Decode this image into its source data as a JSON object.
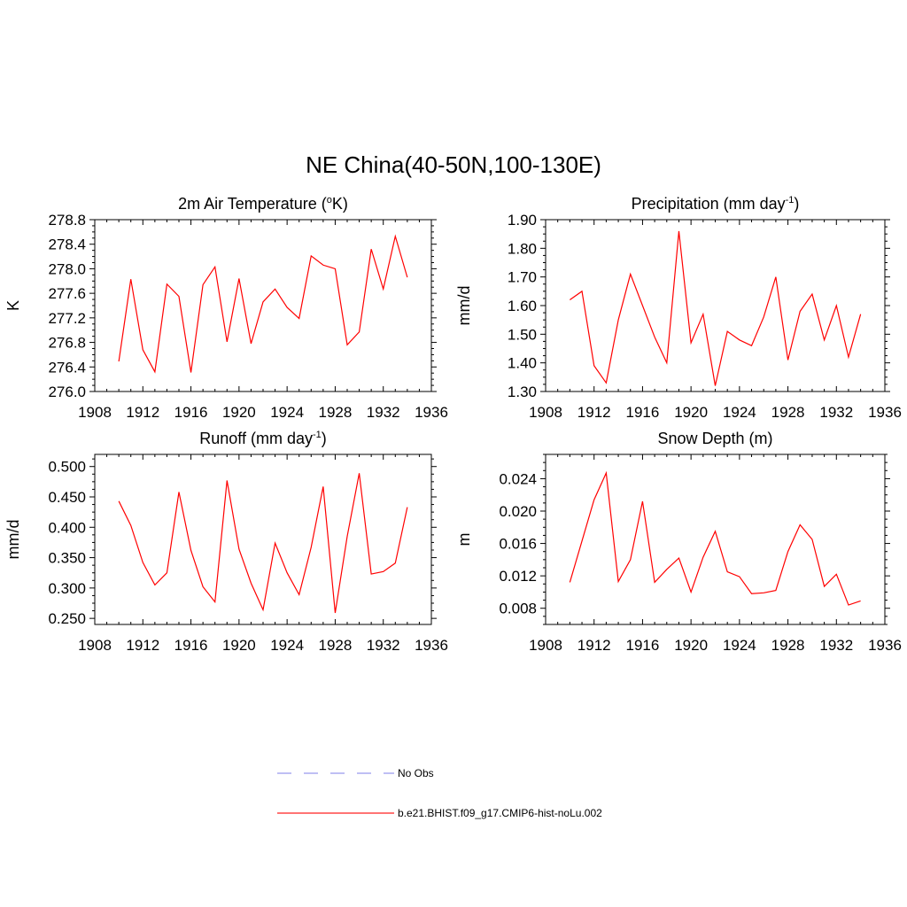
{
  "figure": {
    "title": "NE China(40-50N,100-130E)"
  },
  "legend": {
    "entries": [
      {
        "label": "No Obs",
        "color": "#9999ee",
        "style": "dashed"
      },
      {
        "label": "b.e21.BHIST.f09_g17.CMIP6-hist-noLu.002",
        "color": "#ff2222",
        "style": "solid"
      }
    ]
  },
  "chart_data": [
    {
      "type": "line",
      "title": "2m Air Temperature (",
      "title_sup": "o",
      "title_after": "K)",
      "ylabel": "K",
      "xlim": [
        1908,
        1936
      ],
      "xticks": [
        "1908",
        "1912",
        "1916",
        "1920",
        "1924",
        "1928",
        "1932",
        "1936"
      ],
      "ylim": [
        276.0,
        278.8
      ],
      "yticks": [
        "276.0",
        "276.4",
        "276.8",
        "277.2",
        "277.6",
        "278.0",
        "278.4",
        "278.8"
      ],
      "color": "#ff0000",
      "x": [
        1910,
        1911,
        1912,
        1913,
        1914,
        1915,
        1916,
        1917,
        1918,
        1919,
        1920,
        1921,
        1922,
        1923,
        1924,
        1925,
        1926,
        1927,
        1928,
        1929,
        1930,
        1931,
        1932,
        1933,
        1934
      ],
      "values": [
        276.49,
        277.83,
        276.68,
        276.32,
        277.75,
        277.55,
        276.31,
        277.74,
        278.03,
        276.81,
        277.84,
        276.78,
        277.46,
        277.67,
        277.37,
        277.19,
        278.21,
        278.06,
        278.0,
        276.76,
        276.97,
        278.32,
        277.67,
        278.53,
        277.86
      ]
    },
    {
      "type": "line",
      "title": "Precipitation (mm day",
      "title_sup": "-1",
      "title_after": ")",
      "ylabel": "mm/d",
      "xlim": [
        1908,
        1936
      ],
      "xticks": [
        "1908",
        "1912",
        "1916",
        "1920",
        "1924",
        "1928",
        "1932",
        "1936"
      ],
      "ylim": [
        1.3,
        1.9
      ],
      "yticks": [
        "1.30",
        "1.40",
        "1.50",
        "1.60",
        "1.70",
        "1.80",
        "1.90"
      ],
      "color": "#ff0000",
      "x": [
        1910,
        1911,
        1912,
        1913,
        1914,
        1915,
        1916,
        1917,
        1918,
        1919,
        1920,
        1921,
        1922,
        1923,
        1924,
        1925,
        1926,
        1927,
        1928,
        1929,
        1930,
        1931,
        1932,
        1933,
        1934
      ],
      "values": [
        1.62,
        1.65,
        1.39,
        1.33,
        1.55,
        1.71,
        1.6,
        1.49,
        1.4,
        1.86,
        1.47,
        1.57,
        1.32,
        1.51,
        1.48,
        1.46,
        1.56,
        1.7,
        1.41,
        1.58,
        1.64,
        1.48,
        1.6,
        1.42,
        1.57
      ]
    },
    {
      "type": "line",
      "title": "Runoff (mm day",
      "title_sup": "-1",
      "title_after": ")",
      "ylabel": "mm/d",
      "xlim": [
        1908,
        1936
      ],
      "xticks": [
        "1908",
        "1912",
        "1916",
        "1920",
        "1924",
        "1928",
        "1932",
        "1936"
      ],
      "ylim": [
        0.24,
        0.52
      ],
      "yticks": [
        "0.250",
        "0.300",
        "0.350",
        "0.400",
        "0.450",
        "0.500"
      ],
      "ytick_values": [
        0.25,
        0.3,
        0.35,
        0.4,
        0.45,
        0.5
      ],
      "color": "#ff0000",
      "x": [
        1910,
        1911,
        1912,
        1913,
        1914,
        1915,
        1916,
        1917,
        1918,
        1919,
        1920,
        1921,
        1922,
        1923,
        1924,
        1925,
        1926,
        1927,
        1928,
        1929,
        1930,
        1931,
        1932,
        1933,
        1934
      ],
      "values": [
        0.443,
        0.403,
        0.342,
        0.305,
        0.325,
        0.458,
        0.362,
        0.302,
        0.277,
        0.477,
        0.364,
        0.308,
        0.264,
        0.374,
        0.325,
        0.289,
        0.367,
        0.467,
        0.259,
        0.385,
        0.489,
        0.323,
        0.327,
        0.341,
        0.433
      ]
    },
    {
      "type": "line",
      "title": "Snow Depth (m)",
      "title_sup": "",
      "title_after": "",
      "ylabel": "m",
      "xlim": [
        1908,
        1936
      ],
      "xticks": [
        "1908",
        "1912",
        "1916",
        "1920",
        "1924",
        "1928",
        "1932",
        "1936"
      ],
      "ylim": [
        0.006,
        0.027
      ],
      "yticks": [
        "0.008",
        "0.012",
        "0.016",
        "0.020",
        "0.024"
      ],
      "ytick_values": [
        0.008,
        0.012,
        0.016,
        0.02,
        0.024
      ],
      "color": "#ff0000",
      "x": [
        1910,
        1911,
        1912,
        1913,
        1914,
        1915,
        1916,
        1917,
        1918,
        1919,
        1920,
        1921,
        1922,
        1923,
        1924,
        1925,
        1926,
        1927,
        1928,
        1929,
        1930,
        1931,
        1932,
        1933,
        1934
      ],
      "values": [
        0.0112,
        0.0163,
        0.0214,
        0.0247,
        0.0113,
        0.014,
        0.0212,
        0.0112,
        0.0128,
        0.0142,
        0.01,
        0.0143,
        0.0175,
        0.0125,
        0.0119,
        0.0098,
        0.0099,
        0.0102,
        0.015,
        0.0183,
        0.0165,
        0.0107,
        0.0122,
        0.0084,
        0.0089
      ]
    }
  ]
}
